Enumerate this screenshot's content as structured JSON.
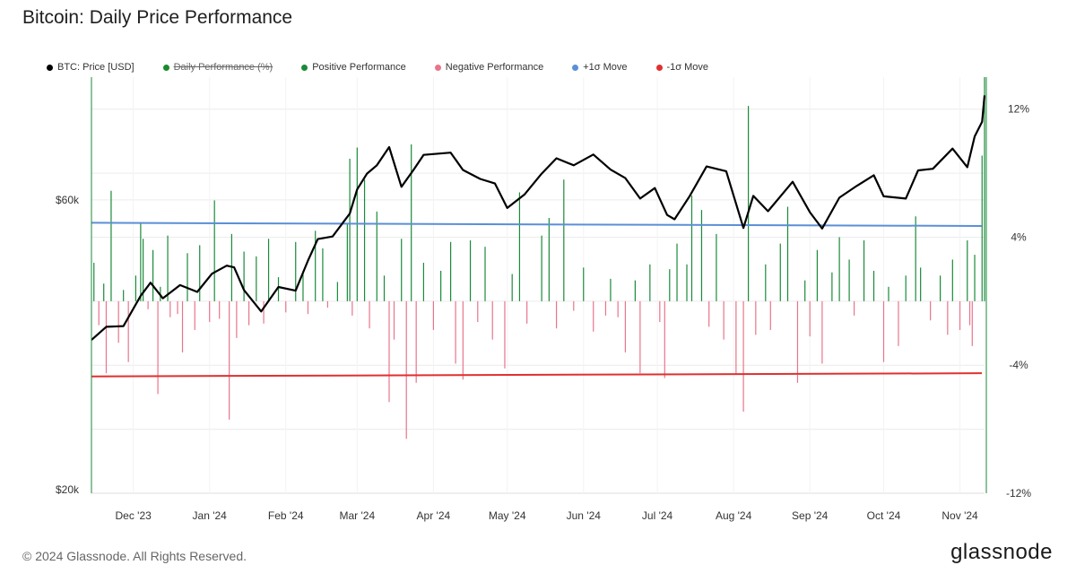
{
  "title": "Bitcoin: Daily Price Performance",
  "footer": "© 2024 Glassnode. All Rights Reserved.",
  "brand": "glassnode",
  "legend": [
    {
      "label": "BTC: Price [USD]",
      "color": "#000000",
      "struck": false
    },
    {
      "label": "Daily Performance (%)",
      "color": "#1a8a2c",
      "struck": true
    },
    {
      "label": "Positive Performance",
      "color": "#1a8a3a",
      "struck": false
    },
    {
      "label": "Negative Performance",
      "color": "#e8758c",
      "struck": false
    },
    {
      "label": "+1σ Move",
      "color": "#5b8fd6",
      "struck": false
    },
    {
      "label": "-1σ Move",
      "color": "#e03030",
      "struck": false
    }
  ],
  "colors": {
    "price": "#000000",
    "positive": "#1a8a3a",
    "negative": "#e8758c",
    "plus_sigma": "#5b8fd6",
    "minus_sigma": "#e03030",
    "grid": "#ececec"
  },
  "chart_data": {
    "type": "line",
    "x_axis": {
      "tick_labels": [
        "Dec '23",
        "Jan '24",
        "Feb '24",
        "Mar '24",
        "Apr '24",
        "May '24",
        "Jun '24",
        "Jul '24",
        "Aug '24",
        "Sep '24",
        "Oct '24",
        "Nov '24"
      ],
      "start": "2023-11-14",
      "end": "2024-11-11"
    },
    "y_left": {
      "label": "",
      "scale": "log",
      "range": [
        20000,
        95000
      ],
      "tick_labels": [
        "$20k",
        "$60k"
      ],
      "tick_values": [
        20000,
        60000
      ]
    },
    "y_right": {
      "label": "",
      "range": [
        -12,
        14
      ],
      "tick_labels": [
        "12%",
        "4%",
        "-4%",
        "-12%"
      ],
      "tick_values": [
        12,
        4,
        -4,
        -12
      ]
    },
    "grid": true,
    "legend_position": "top-left",
    "price_series": {
      "name": "BTC: Price [USD]",
      "points": [
        [
          "2023-11-14",
          35500
        ],
        [
          "2023-11-20",
          37300
        ],
        [
          "2023-11-27",
          37400
        ],
        [
          "2023-12-04",
          41900
        ],
        [
          "2023-12-08",
          44000
        ],
        [
          "2023-12-13",
          41500
        ],
        [
          "2023-12-20",
          43600
        ],
        [
          "2023-12-27",
          42500
        ],
        [
          "2024-01-02",
          45500
        ],
        [
          "2024-01-08",
          46900
        ],
        [
          "2024-01-11",
          46600
        ],
        [
          "2024-01-15",
          42800
        ],
        [
          "2024-01-22",
          39500
        ],
        [
          "2024-01-29",
          43300
        ],
        [
          "2024-02-05",
          42700
        ],
        [
          "2024-02-10",
          47800
        ],
        [
          "2024-02-14",
          51800
        ],
        [
          "2024-02-20",
          52300
        ],
        [
          "2024-02-27",
          57000
        ],
        [
          "2024-03-01",
          62400
        ],
        [
          "2024-03-05",
          66200
        ],
        [
          "2024-03-09",
          68300
        ],
        [
          "2024-03-14",
          73100
        ],
        [
          "2024-03-19",
          63000
        ],
        [
          "2024-03-24",
          67200
        ],
        [
          "2024-03-28",
          71000
        ],
        [
          "2024-04-08",
          71600
        ],
        [
          "2024-04-13",
          67100
        ],
        [
          "2024-04-20",
          64900
        ],
        [
          "2024-04-26",
          63800
        ],
        [
          "2024-05-01",
          58200
        ],
        [
          "2024-05-08",
          61200
        ],
        [
          "2024-05-15",
          66200
        ],
        [
          "2024-05-21",
          70100
        ],
        [
          "2024-05-28",
          68300
        ],
        [
          "2024-06-05",
          71100
        ],
        [
          "2024-06-12",
          67200
        ],
        [
          "2024-06-18",
          65100
        ],
        [
          "2024-06-24",
          60300
        ],
        [
          "2024-06-30",
          62700
        ],
        [
          "2024-07-05",
          56700
        ],
        [
          "2024-07-08",
          55800
        ],
        [
          "2024-07-14",
          60700
        ],
        [
          "2024-07-21",
          68000
        ],
        [
          "2024-07-29",
          66800
        ],
        [
          "2024-08-05",
          54000
        ],
        [
          "2024-08-09",
          60900
        ],
        [
          "2024-08-15",
          57500
        ],
        [
          "2024-08-25",
          64200
        ],
        [
          "2024-09-01",
          57300
        ],
        [
          "2024-09-06",
          53900
        ],
        [
          "2024-09-13",
          60500
        ],
        [
          "2024-09-20",
          63200
        ],
        [
          "2024-09-27",
          65800
        ],
        [
          "2024-10-01",
          60800
        ],
        [
          "2024-10-10",
          60300
        ],
        [
          "2024-10-15",
          67000
        ],
        [
          "2024-10-21",
          67400
        ],
        [
          "2024-10-29",
          72700
        ],
        [
          "2024-11-04",
          67800
        ],
        [
          "2024-11-07",
          76100
        ],
        [
          "2024-11-10",
          80400
        ],
        [
          "2024-11-11",
          88700
        ]
      ]
    },
    "sigma_lines": {
      "plus_1sigma": [
        4.9,
        4.7
      ],
      "minus_1sigma": [
        -4.7,
        -4.5
      ]
    },
    "performance_series": {
      "name": "Daily Performance (%)",
      "points": [
        [
          "2023-11-15",
          2.4
        ],
        [
          "2023-11-17",
          -1.5
        ],
        [
          "2023-11-19",
          1.1
        ],
        [
          "2023-11-20",
          -4.5
        ],
        [
          "2023-11-22",
          6.9
        ],
        [
          "2023-11-25",
          -2.6
        ],
        [
          "2023-11-27",
          0.7
        ],
        [
          "2023-11-29",
          -3.8
        ],
        [
          "2023-12-02",
          1.6
        ],
        [
          "2023-12-04",
          4.9
        ],
        [
          "2023-12-05",
          3.9
        ],
        [
          "2023-12-07",
          -0.5
        ],
        [
          "2023-12-09",
          3.2
        ],
        [
          "2023-12-11",
          -5.8
        ],
        [
          "2023-12-12",
          0.9
        ],
        [
          "2023-12-15",
          4.1
        ],
        [
          "2023-12-16",
          -1.0
        ],
        [
          "2023-12-19",
          -0.8
        ],
        [
          "2023-12-21",
          -3.2
        ],
        [
          "2023-12-23",
          3.0
        ],
        [
          "2023-12-26",
          -1.8
        ],
        [
          "2023-12-28",
          3.5
        ],
        [
          "2024-01-01",
          -1.3
        ],
        [
          "2024-01-03",
          6.3
        ],
        [
          "2024-01-05",
          -1.1
        ],
        [
          "2024-01-09",
          -7.4
        ],
        [
          "2024-01-10",
          4.2
        ],
        [
          "2024-01-12",
          -2.3
        ],
        [
          "2024-01-15",
          3.1
        ],
        [
          "2024-01-17",
          -1.5
        ],
        [
          "2024-01-20",
          2.8
        ],
        [
          "2024-01-23",
          -1.4
        ],
        [
          "2024-01-25",
          3.9
        ],
        [
          "2024-01-29",
          1.5
        ],
        [
          "2024-02-01",
          -0.7
        ],
        [
          "2024-02-05",
          3.7
        ],
        [
          "2024-02-08",
          1.9
        ],
        [
          "2024-02-10",
          -0.8
        ],
        [
          "2024-02-13",
          4.4
        ],
        [
          "2024-02-16",
          3.3
        ],
        [
          "2024-02-18",
          -0.4
        ],
        [
          "2024-02-22",
          1.2
        ],
        [
          "2024-02-26",
          4.8
        ],
        [
          "2024-02-27",
          8.9
        ],
        [
          "2024-02-28",
          -0.9
        ],
        [
          "2024-03-01",
          9.6
        ],
        [
          "2024-03-04",
          7.6
        ],
        [
          "2024-03-06",
          -1.7
        ],
        [
          "2024-03-09",
          5.6
        ],
        [
          "2024-03-12",
          1.6
        ],
        [
          "2024-03-14",
          -6.3
        ],
        [
          "2024-03-16",
          -2.4
        ],
        [
          "2024-03-19",
          3.9
        ],
        [
          "2024-03-21",
          -8.6
        ],
        [
          "2024-03-23",
          9.8
        ],
        [
          "2024-03-25",
          -5.1
        ],
        [
          "2024-03-28",
          2.4
        ],
        [
          "2024-04-01",
          -1.8
        ],
        [
          "2024-04-04",
          1.9
        ],
        [
          "2024-04-08",
          3.7
        ],
        [
          "2024-04-10",
          -3.9
        ],
        [
          "2024-04-13",
          -4.9
        ],
        [
          "2024-04-16",
          3.8
        ],
        [
          "2024-04-19",
          -1.3
        ],
        [
          "2024-04-22",
          3.4
        ],
        [
          "2024-04-25",
          -2.4
        ],
        [
          "2024-04-30",
          -4.2
        ],
        [
          "2024-05-03",
          1.7
        ],
        [
          "2024-05-06",
          6.8
        ],
        [
          "2024-05-09",
          -1.4
        ],
        [
          "2024-05-15",
          4.1
        ],
        [
          "2024-05-18",
          5.2
        ],
        [
          "2024-05-21",
          -1.7
        ],
        [
          "2024-05-24",
          7.6
        ],
        [
          "2024-05-28",
          -0.6
        ],
        [
          "2024-06-01",
          2.1
        ],
        [
          "2024-06-05",
          -1.9
        ],
        [
          "2024-06-10",
          -0.9
        ],
        [
          "2024-06-12",
          1.4
        ],
        [
          "2024-06-15",
          -1.0
        ],
        [
          "2024-06-18",
          -3.2
        ],
        [
          "2024-06-22",
          1.3
        ],
        [
          "2024-06-24",
          -4.5
        ],
        [
          "2024-06-28",
          2.3
        ],
        [
          "2024-07-02",
          -1.3
        ],
        [
          "2024-07-04",
          -4.8
        ],
        [
          "2024-07-06",
          2.0
        ],
        [
          "2024-07-09",
          3.6
        ],
        [
          "2024-07-13",
          2.3
        ],
        [
          "2024-07-15",
          6.6
        ],
        [
          "2024-07-19",
          5.7
        ],
        [
          "2024-07-22",
          -1.6
        ],
        [
          "2024-07-25",
          4.2
        ],
        [
          "2024-07-28",
          -2.4
        ],
        [
          "2024-08-02",
          -4.6
        ],
        [
          "2024-08-05",
          -6.9
        ],
        [
          "2024-08-07",
          12.2
        ],
        [
          "2024-08-10",
          -2.1
        ],
        [
          "2024-08-14",
          2.3
        ],
        [
          "2024-08-16",
          -1.8
        ],
        [
          "2024-08-20",
          3.6
        ],
        [
          "2024-08-23",
          5.9
        ],
        [
          "2024-08-27",
          -5.1
        ],
        [
          "2024-08-30",
          1.3
        ],
        [
          "2024-09-01",
          -2.2
        ],
        [
          "2024-09-04",
          3.2
        ],
        [
          "2024-09-06",
          -3.9
        ],
        [
          "2024-09-10",
          1.8
        ],
        [
          "2024-09-13",
          4.0
        ],
        [
          "2024-09-17",
          2.6
        ],
        [
          "2024-09-19",
          -0.9
        ],
        [
          "2024-09-23",
          3.8
        ],
        [
          "2024-09-27",
          1.9
        ],
        [
          "2024-10-01",
          -3.8
        ],
        [
          "2024-10-03",
          0.9
        ],
        [
          "2024-10-07",
          -2.8
        ],
        [
          "2024-10-10",
          1.6
        ],
        [
          "2024-10-14",
          5.3
        ],
        [
          "2024-10-16",
          2.1
        ],
        [
          "2024-10-20",
          -1.2
        ],
        [
          "2024-10-24",
          1.6
        ],
        [
          "2024-10-27",
          -2.1
        ],
        [
          "2024-10-29",
          2.6
        ],
        [
          "2024-11-01",
          -1.8
        ],
        [
          "2024-11-04",
          3.8
        ],
        [
          "2024-11-05",
          -1.5
        ],
        [
          "2024-11-06",
          -2.8
        ],
        [
          "2024-11-07",
          2.9
        ],
        [
          "2024-11-10",
          9.1
        ],
        [
          "2024-11-11",
          14.0
        ]
      ]
    }
  }
}
